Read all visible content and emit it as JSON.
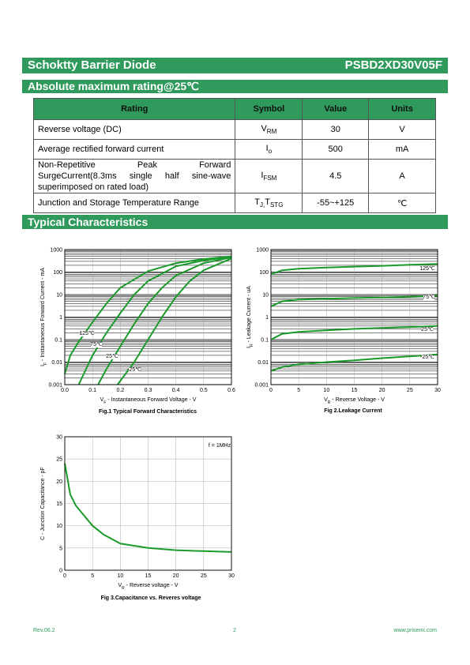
{
  "header": {
    "title": "Schoktty Barrier Diode",
    "part": "PSBD2XD30V05F"
  },
  "section1": "Absolute maximum rating@25℃",
  "table": {
    "columns": [
      "Rating",
      "Symbol",
      "Value",
      "Units"
    ],
    "rows": [
      {
        "rating": "Reverse voltage (DC)",
        "symbol": [
          "V",
          "RM"
        ],
        "value": "30",
        "units": "V"
      },
      {
        "rating": "Average rectified forward current",
        "symbol": [
          "I",
          "o"
        ],
        "value": "500",
        "units": "mA"
      },
      {
        "rating": "Non-Repetitive Peak Forward SurgeCurrent(8.3ms single half sine-wave superimposed on rated load)",
        "symbol": [
          "I",
          "FSM"
        ],
        "value": "4.5",
        "units": "A"
      },
      {
        "rating": "Junction and Storage Temperature Range",
        "symbol": [
          "T",
          "J,",
          "T",
          "STG"
        ],
        "value": "-55~+125",
        "units": "℃"
      }
    ]
  },
  "section2": "Typical Characteristics",
  "chart_data": [
    {
      "type": "line",
      "caption": "Fig.1 Typical Forward Characteristics",
      "xlabel": [
        "V",
        "F",
        " - Instantaneous Forward Voltage - V"
      ],
      "ylabel": [
        "I",
        "F",
        " - Instantaneous Forward Current - mA"
      ],
      "xlim": [
        0,
        0.6
      ],
      "xticks": [
        {
          "value": 0,
          "label": "0.0"
        },
        0.1,
        0.2,
        0.3,
        0.4,
        0.5,
        0.6
      ],
      "ylim": [
        0.001,
        1000
      ],
      "yticks": [
        0.001,
        0.01,
        0.1,
        1,
        10,
        100,
        1000
      ],
      "ylog": true,
      "grid": true,
      "series": [
        {
          "name": "125℃",
          "color": "#1a9a2a",
          "x": [
            0,
            0.02,
            0.05,
            0.1,
            0.15,
            0.2,
            0.3,
            0.4,
            0.5,
            0.6
          ],
          "values": [
            0.003,
            0.02,
            0.08,
            0.6,
            4,
            20,
            110,
            250,
            380,
            500
          ]
        },
        {
          "name": "75℃",
          "color": "#1a9a2a",
          "x": [
            0.05,
            0.1,
            0.15,
            0.2,
            0.25,
            0.3,
            0.4,
            0.5,
            0.6
          ],
          "values": [
            0.001,
            0.02,
            0.2,
            1.5,
            10,
            40,
            180,
            330,
            480
          ]
        },
        {
          "name": "25℃",
          "color": "#1a9a2a",
          "x": [
            0.12,
            0.15,
            0.2,
            0.25,
            0.3,
            0.35,
            0.4,
            0.5,
            0.6
          ],
          "values": [
            0.001,
            0.005,
            0.05,
            0.5,
            4,
            20,
            70,
            250,
            450
          ]
        },
        {
          "name": "-25℃",
          "color": "#1a9a2a",
          "x": [
            0.19,
            0.25,
            0.3,
            0.35,
            0.4,
            0.45,
            0.5,
            0.6
          ],
          "values": [
            0.001,
            0.01,
            0.1,
            1,
            8,
            40,
            120,
            400
          ]
        }
      ]
    },
    {
      "type": "line",
      "caption": "Fig 2.Leakage Current",
      "xlabel": [
        "V",
        "R",
        " - Reverse Voltage - V"
      ],
      "ylabel": [
        "I",
        "R",
        " - Leakage Current - uA"
      ],
      "xlim": [
        0,
        30
      ],
      "xticks": [
        0,
        5,
        10,
        15,
        20,
        25,
        30
      ],
      "ylim": [
        0.001,
        1000
      ],
      "yticks": [
        0.001,
        0.01,
        0.1,
        1,
        10,
        100,
        1000
      ],
      "ylog": true,
      "grid": true,
      "series": [
        {
          "name": "125℃",
          "color": "#1a9a2a",
          "x": [
            0,
            2,
            5,
            10,
            15,
            20,
            25,
            30
          ],
          "values": [
            80,
            120,
            140,
            160,
            175,
            190,
            210,
            230
          ]
        },
        {
          "name": "75℃",
          "color": "#1a9a2a",
          "x": [
            0,
            2,
            5,
            10,
            15,
            20,
            25,
            30
          ],
          "values": [
            3,
            5,
            6,
            6.5,
            7,
            7.5,
            8,
            9
          ]
        },
        {
          "name": "25℃",
          "color": "#1a9a2a",
          "x": [
            0,
            2,
            5,
            10,
            15,
            20,
            25,
            30
          ],
          "values": [
            0.1,
            0.18,
            0.22,
            0.26,
            0.3,
            0.33,
            0.36,
            0.4
          ]
        },
        {
          "name": "-25℃",
          "color": "#1a9a2a",
          "x": [
            0,
            2,
            5,
            10,
            15,
            20,
            25,
            30
          ],
          "values": [
            0.004,
            0.006,
            0.008,
            0.01,
            0.012,
            0.015,
            0.018,
            0.022
          ]
        }
      ]
    },
    {
      "type": "line",
      "caption": "Fig 3.Capacitance vs. Reveres voltage",
      "xlabel": [
        "V",
        "R",
        " - Reverse voltage - V"
      ],
      "ylabel": [
        "C - Junction Capacitance - pF"
      ],
      "annotation": "f = 1MHz",
      "xlim": [
        0,
        30
      ],
      "xticks": [
        0,
        5,
        10,
        15,
        20,
        25,
        30
      ],
      "ylim": [
        0,
        30
      ],
      "yticks": [
        0,
        5,
        10,
        15,
        20,
        25,
        30
      ],
      "ylog": false,
      "grid": true,
      "series": [
        {
          "color": "#1a9a2a",
          "x": [
            0,
            1,
            2,
            3,
            5,
            7,
            10,
            15,
            20,
            25,
            30
          ],
          "values": [
            24,
            17,
            14.5,
            13,
            10,
            8,
            6,
            5,
            4.5,
            4.3,
            4.1
          ]
        }
      ]
    }
  ],
  "footer": {
    "rev": "Rev.06.2",
    "page": "2",
    "url": "www.prisemi.com"
  }
}
